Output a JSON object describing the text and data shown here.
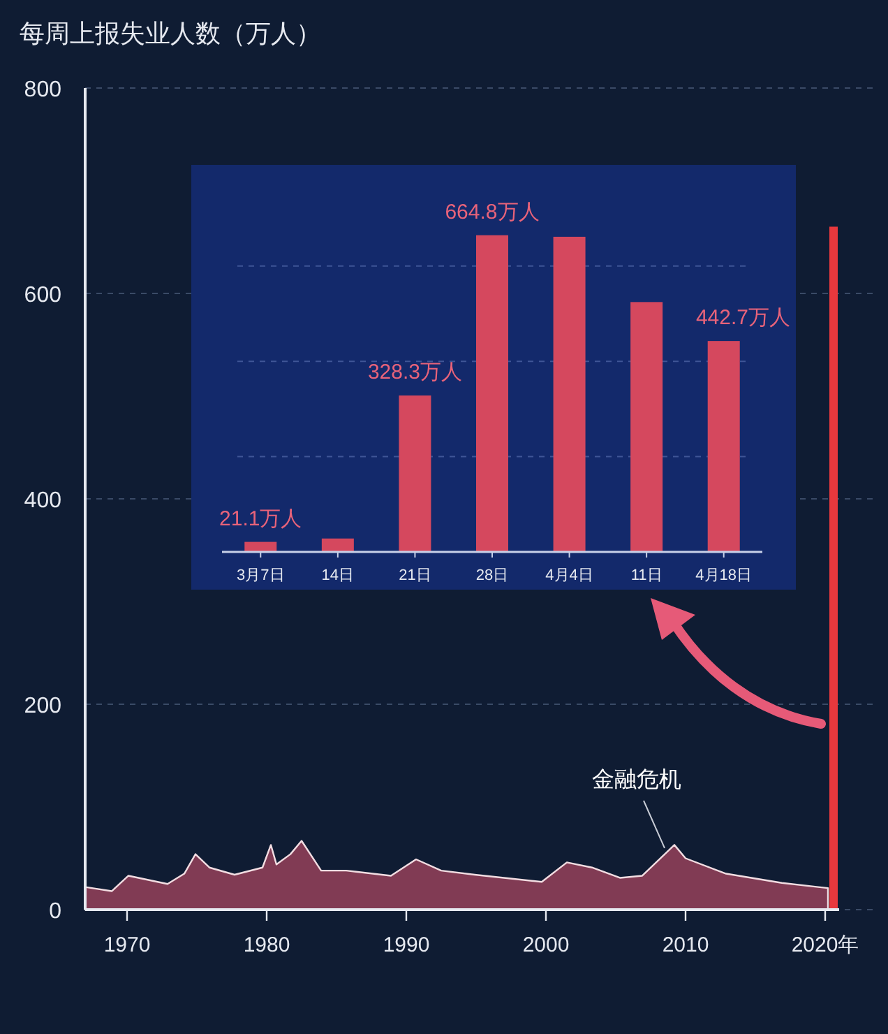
{
  "chart_data": [
    {
      "type": "area",
      "title": "每周上报失业人数（万人）",
      "xlim": [
        1967,
        2021
      ],
      "ylim": [
        0,
        800
      ],
      "xticks": [
        1970,
        1980,
        1990,
        2000,
        2010,
        {
          "value": 2020,
          "label": "2020年"
        }
      ],
      "yticks": [
        0,
        200,
        400,
        600,
        800
      ],
      "grid": "y",
      "series": [
        {
          "type": "area",
          "color": "#8e3f58",
          "x": [
            1967,
            1968.9,
            1970.1,
            1972.9,
            1974.1,
            1974.9,
            1975.9,
            1977.7,
            1979.7,
            1980.3,
            1980.7,
            1981.7,
            1982.5,
            1983.9,
            1985.7,
            1988.9,
            1990.7,
            1992.5,
            1994.9,
            1999.7,
            2001.5,
            2003.3,
            2005.3,
            2006.9,
            2009.2,
            2010.0,
            2012.9,
            2016.9,
            2019.5,
            2020.2
          ],
          "values": [
            22,
            18,
            33,
            25,
            35,
            54,
            41,
            34,
            41,
            63,
            44,
            54,
            67,
            38,
            38,
            33,
            49,
            38,
            34,
            27,
            46,
            41,
            31,
            33,
            63,
            50,
            35,
            26,
            22,
            21
          ]
        },
        {
          "type": "bar",
          "color": "#e8383d",
          "x": [
            2020.6
          ],
          "values": [
            665
          ]
        }
      ],
      "annotations": [
        {
          "text": "金融危机",
          "x": 2008.5,
          "y": 60
        }
      ]
    },
    {
      "type": "bar",
      "color": "#d5485e",
      "categories": [
        "3月7日",
        "14日",
        "21日",
        "28日",
        "4月4日",
        "11日",
        "4月18日"
      ],
      "values": [
        21.1,
        28.2,
        328.3,
        664.8,
        661.5,
        524.5,
        442.7
      ],
      "value_labels": [
        "21.1万人",
        null,
        "328.3万人",
        "664.8万人",
        null,
        null,
        "442.7万人"
      ],
      "ref_lines": [
        {
          "axis": "y",
          "value": 200,
          "color": "#3f5596",
          "line_style": "dashed"
        },
        {
          "axis": "y",
          "value": 400,
          "color": "#3f5596",
          "line_style": "dashed"
        },
        {
          "axis": "y",
          "value": 600,
          "color": "#3f5596",
          "line_style": "dashed"
        }
      ]
    }
  ]
}
